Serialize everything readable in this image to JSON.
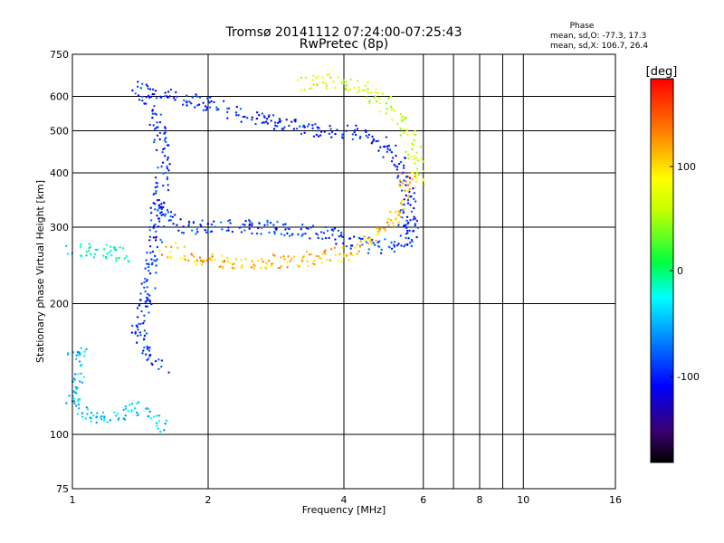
{
  "chart_data": {
    "type": "scatter",
    "title": "Tromsø 20141112 07:24:00-07:25:43",
    "subtitle": "RwPretec (8p)",
    "xlabel": "Frequency [MHz]",
    "ylabel": "Stationary phase Virtual Height [km]",
    "xscale": "log",
    "yscale": "log",
    "xlim": [
      1,
      16
    ],
    "ylim": [
      75,
      750
    ],
    "xticks": [
      "1",
      "2",
      "4",
      "6",
      "8",
      "10",
      "16"
    ],
    "yticks": [
      "75",
      "100",
      "200",
      "300",
      "400",
      "500",
      "600",
      "750"
    ],
    "grid": true,
    "stats": {
      "title": "Phase",
      "line_o": "mean, sd,O: -77.3, 17.3",
      "line_x": "mean, sd,X: 106.7, 26.4"
    },
    "colorbar": {
      "label": "[deg]",
      "ticks": [
        "100",
        "0",
        "-100"
      ],
      "range": [
        -180,
        180
      ]
    },
    "traces": [
      {
        "points": [
          [
            1.5,
            620
          ],
          [
            1.7,
            600
          ],
          [
            2.2,
            560
          ],
          [
            2.8,
            520
          ],
          [
            3.3,
            505
          ],
          [
            3.9,
            500
          ],
          [
            4.5,
            490
          ],
          [
            5.0,
            460
          ],
          [
            5.3,
            420
          ],
          [
            5.5,
            380
          ],
          [
            5.6,
            340
          ],
          [
            5.65,
            300
          ],
          [
            5.6,
            270
          ]
        ],
        "phase": -100
      },
      {
        "points": [
          [
            3.2,
            640
          ],
          [
            3.8,
            650
          ],
          [
            4.4,
            630
          ],
          [
            4.9,
            580
          ],
          [
            5.3,
            540
          ],
          [
            5.6,
            480
          ],
          [
            5.8,
            430
          ],
          [
            5.9,
            380
          ]
        ],
        "phase": 60
      },
      {
        "points": [
          [
            1.5,
            330
          ],
          [
            1.8,
            300
          ],
          [
            2.2,
            300
          ],
          [
            2.7,
            300
          ],
          [
            3.2,
            295
          ],
          [
            3.8,
            285
          ],
          [
            4.3,
            275
          ],
          [
            4.8,
            270
          ],
          [
            5.2,
            275
          ],
          [
            5.4,
            290
          ],
          [
            5.5,
            320
          ]
        ],
        "phase": -90
      },
      {
        "points": [
          [
            1.6,
            270
          ],
          [
            1.9,
            252
          ],
          [
            2.3,
            250
          ],
          [
            2.8,
            250
          ],
          [
            3.4,
            255
          ],
          [
            3.9,
            260
          ],
          [
            4.3,
            268
          ],
          [
            4.7,
            285
          ],
          [
            5.1,
            310
          ],
          [
            5.4,
            350
          ],
          [
            5.6,
            400
          ]
        ],
        "phase": 110
      },
      {
        "points": [
          [
            1.4,
            640
          ],
          [
            1.55,
            520
          ],
          [
            1.6,
            420
          ],
          [
            1.55,
            330
          ],
          [
            1.5,
            250
          ],
          [
            1.45,
            200
          ],
          [
            1.4,
            170
          ],
          [
            1.5,
            150
          ],
          [
            1.6,
            140
          ]
        ],
        "phase": -95
      },
      {
        "points": [
          [
            1.0,
            270
          ],
          [
            1.1,
            265
          ],
          [
            1.2,
            262
          ],
          [
            1.35,
            258
          ]
        ],
        "phase": -20
      },
      {
        "points": [
          [
            1.0,
            160
          ],
          [
            1.05,
            150
          ],
          [
            1.0,
            120
          ],
          [
            1.1,
            110
          ],
          [
            1.2,
            108
          ],
          [
            1.3,
            112
          ],
          [
            1.4,
            115
          ],
          [
            1.5,
            108
          ],
          [
            1.6,
            104
          ]
        ],
        "phase": -40
      }
    ]
  }
}
